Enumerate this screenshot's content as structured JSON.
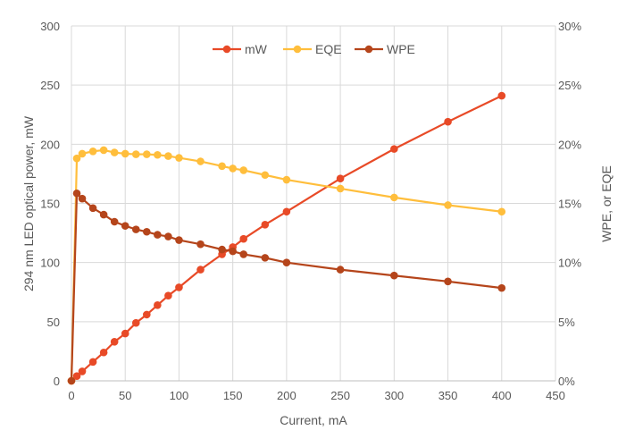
{
  "chart_data": {
    "type": "line",
    "xlabel": "Current, mA",
    "ylabel": "294 nm LED optical power, mW",
    "y2label": "WPE, or EQE",
    "xlim": [
      0,
      450
    ],
    "ylim": [
      0,
      300
    ],
    "y2lim": [
      0,
      30
    ],
    "xticks": [
      "0",
      "50",
      "100",
      "150",
      "200",
      "250",
      "300",
      "350",
      "400",
      "450"
    ],
    "yticks": [
      "0",
      "50",
      "100",
      "150",
      "200",
      "250",
      "300"
    ],
    "y2ticks": [
      "0%",
      "5%",
      "10%",
      "15%",
      "20%",
      "25%",
      "30%"
    ],
    "grid": true,
    "legend_position": "top",
    "x": [
      0,
      5,
      10,
      20,
      30,
      40,
      50,
      60,
      70,
      80,
      90,
      100,
      120,
      140,
      150,
      160,
      180,
      200,
      250,
      300,
      350,
      400
    ],
    "series": [
      {
        "name": "mW",
        "axis": "left",
        "color": "#E84A27",
        "values": [
          0,
          4,
          8,
          16,
          24,
          33,
          40,
          49,
          56,
          64,
          72,
          79,
          94,
          107,
          113,
          120,
          132,
          143,
          171,
          196,
          219,
          241
        ]
      },
      {
        "name": "EQE",
        "axis": "right",
        "color": "#FFBE3C",
        "values": [
          0,
          18.8,
          19.2,
          19.4,
          19.5,
          19.3,
          19.2,
          19.15,
          19.15,
          19.1,
          19.0,
          18.85,
          18.55,
          18.15,
          17.95,
          17.8,
          17.4,
          17.0,
          16.25,
          15.5,
          14.85,
          14.3
        ]
      },
      {
        "name": "WPE",
        "axis": "right",
        "color": "#B5451B",
        "values": [
          0,
          15.85,
          15.4,
          14.6,
          14.05,
          13.45,
          13.1,
          12.8,
          12.6,
          12.35,
          12.2,
          11.9,
          11.55,
          11.1,
          10.95,
          10.7,
          10.4,
          10.0,
          9.4,
          8.9,
          8.4,
          7.85
        ]
      }
    ]
  }
}
